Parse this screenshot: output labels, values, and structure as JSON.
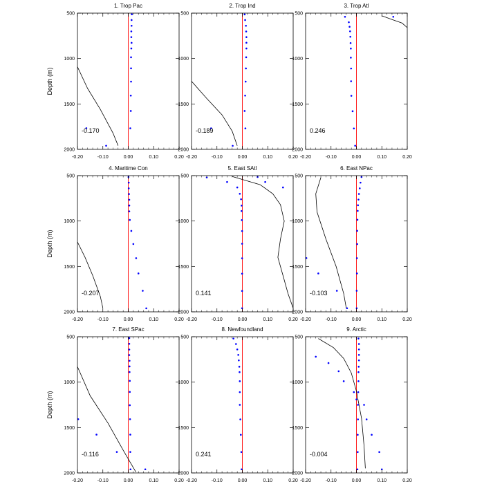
{
  "chart_data": [
    {
      "type": "scatter",
      "title": "1. Trop Pac",
      "ylabel": "Depth (m)",
      "xlim": [
        -0.2,
        0.2
      ],
      "ylim": [
        500,
        2000
      ],
      "y_inverted": true,
      "xticks": [
        "-0.20",
        "-0.10",
        "0.00",
        "0.10",
        "0.20"
      ],
      "yticks": [
        "500",
        "1000",
        "1500",
        "2000"
      ],
      "annotation": "-0.170",
      "reference_line_x": 0,
      "points": [
        [
          0.014,
          513
        ],
        [
          0.013,
          576
        ],
        [
          0.013,
          639
        ],
        [
          0.012,
          701
        ],
        [
          0.012,
          764
        ],
        [
          0.013,
          827
        ],
        [
          0.012,
          889
        ],
        [
          0.011,
          986
        ],
        [
          0.011,
          1108
        ],
        [
          0.011,
          1254
        ],
        [
          0.01,
          1408
        ],
        [
          0.01,
          1577
        ],
        [
          0.008,
          1768
        ],
        [
          -0.165,
          1767
        ],
        [
          -0.087,
          1960
        ]
      ],
      "curve": [
        [
          -0.2,
          1090
        ],
        [
          -0.16,
          1330
        ],
        [
          -0.11,
          1560
        ],
        [
          -0.06,
          1820
        ],
        [
          -0.04,
          1960
        ]
      ]
    },
    {
      "type": "scatter",
      "title": "2. Trop Ind",
      "ylabel": "",
      "xlim": [
        -0.2,
        0.2
      ],
      "ylim": [
        500,
        2000
      ],
      "y_inverted": true,
      "xticks": [
        "-0.20",
        "-0.10",
        "0.00",
        "0.10",
        "0.20"
      ],
      "yticks": [
        "500",
        "1000",
        "1500",
        "2000"
      ],
      "annotation": "-0.189",
      "reference_line_x": 0,
      "points": [
        [
          0.009,
          514
        ],
        [
          0.011,
          576
        ],
        [
          0.014,
          639
        ],
        [
          0.015,
          702
        ],
        [
          0.016,
          764
        ],
        [
          0.016,
          826
        ],
        [
          0.016,
          889
        ],
        [
          0.015,
          986
        ],
        [
          0.014,
          1109
        ],
        [
          0.013,
          1254
        ],
        [
          0.011,
          1408
        ],
        [
          0.009,
          1577
        ],
        [
          0.012,
          1769
        ],
        [
          -0.123,
          1768
        ],
        [
          -0.038,
          1961
        ]
      ],
      "curve": [
        [
          -0.2,
          1250
        ],
        [
          -0.14,
          1440
        ],
        [
          -0.08,
          1620
        ],
        [
          -0.04,
          1800
        ],
        [
          -0.02,
          1960
        ]
      ]
    },
    {
      "type": "scatter",
      "title": "3. Trop Atl",
      "ylabel": "",
      "xlim": [
        -0.2,
        0.2
      ],
      "ylim": [
        500,
        2000
      ],
      "y_inverted": true,
      "xticks": [
        "-0.20",
        "-0.10",
        "0.00",
        "0.10",
        "0.20"
      ],
      "yticks": [
        "500",
        "1000",
        "1500",
        "2000"
      ],
      "annotation": "0.246",
      "reference_line_x": 0,
      "points": [
        [
          0.145,
          540
        ],
        [
          -0.045,
          540
        ],
        [
          -0.03,
          600
        ],
        [
          -0.027,
          650
        ],
        [
          -0.025,
          700
        ],
        [
          -0.024,
          760
        ],
        [
          -0.023,
          830
        ],
        [
          -0.022,
          890
        ],
        [
          -0.022,
          990
        ],
        [
          -0.021,
          1110
        ],
        [
          -0.021,
          1250
        ],
        [
          -0.02,
          1410
        ],
        [
          -0.015,
          1580
        ],
        [
          -0.01,
          1770
        ],
        [
          -0.005,
          1960
        ]
      ],
      "curve": [
        [
          0.1,
          530
        ],
        [
          0.14,
          570
        ],
        [
          0.18,
          610
        ],
        [
          0.2,
          660
        ]
      ]
    },
    {
      "type": "scatter",
      "title": "4. Maritime Con",
      "ylabel": "Depth (m)",
      "xlim": [
        -0.2,
        0.2
      ],
      "ylim": [
        500,
        2000
      ],
      "y_inverted": true,
      "xticks": [
        "-0.20",
        "-0.10",
        "0.00",
        "0.10",
        "0.20"
      ],
      "yticks": [
        "500",
        "1000",
        "1500",
        "2000"
      ],
      "annotation": "-0.207",
      "reference_line_x": 0,
      "points": [
        [
          0.001,
          515
        ],
        [
          0.002,
          577
        ],
        [
          0.002,
          640
        ],
        [
          0.003,
          703
        ],
        [
          0.004,
          766
        ],
        [
          0.004,
          829
        ],
        [
          0.004,
          893
        ],
        [
          0.006,
          988
        ],
        [
          0.012,
          1109
        ],
        [
          0.02,
          1253
        ],
        [
          0.031,
          1409
        ],
        [
          0.04,
          1577
        ],
        [
          0.057,
          1768
        ],
        [
          0.071,
          1961
        ]
      ],
      "curve": [
        [
          -0.2,
          1230
        ],
        [
          -0.17,
          1400
        ],
        [
          -0.14,
          1600
        ],
        [
          -0.11,
          1830
        ],
        [
          -0.1,
          1960
        ]
      ]
    },
    {
      "type": "scatter",
      "title": "5. East SAtl",
      "ylabel": "",
      "xlim": [
        -0.2,
        0.2
      ],
      "ylim": [
        500,
        2000
      ],
      "y_inverted": true,
      "xticks": [
        "-0.20",
        "-0.10",
        "0.00",
        "0.10",
        "0.20"
      ],
      "yticks": [
        "500",
        "1000",
        "1500",
        "2000"
      ],
      "annotation": "0.141",
      "reference_line_x": 0,
      "points": [
        [
          -0.14,
          520
        ],
        [
          -0.06,
          570
        ],
        [
          0.06,
          515
        ],
        [
          0.09,
          570
        ],
        [
          0.16,
          630
        ],
        [
          -0.02,
          630
        ],
        [
          -0.01,
          700
        ],
        [
          -0.005,
          760
        ],
        [
          -0.003,
          830
        ],
        [
          -0.003,
          890
        ],
        [
          -0.002,
          990
        ],
        [
          -0.001,
          1110
        ],
        [
          -0.001,
          1250
        ],
        [
          -0.001,
          1410
        ],
        [
          -0.001,
          1580
        ],
        [
          -0.001,
          1770
        ],
        [
          -0.001,
          1960
        ]
      ],
      "curve": [
        [
          -0.04,
          510
        ],
        [
          0.07,
          600
        ],
        [
          0.12,
          700
        ],
        [
          0.15,
          820
        ],
        [
          0.165,
          1000
        ],
        [
          0.15,
          1200
        ],
        [
          0.14,
          1400
        ],
        [
          0.16,
          1600
        ],
        [
          0.18,
          1800
        ],
        [
          0.2,
          1960
        ]
      ]
    },
    {
      "type": "scatter",
      "title": "6. East NPac",
      "ylabel": "",
      "xlim": [
        -0.2,
        0.2
      ],
      "ylim": [
        500,
        2000
      ],
      "y_inverted": true,
      "xticks": [
        "-0.20",
        "-0.10",
        "0.00",
        "0.10",
        "0.20"
      ],
      "yticks": [
        "500",
        "1000",
        "1500",
        "2000"
      ],
      "annotation": "-0.103",
      "reference_line_x": 0,
      "points": [
        [
          0.02,
          515
        ],
        [
          0.016,
          577
        ],
        [
          0.013,
          640
        ],
        [
          0.01,
          702
        ],
        [
          0.008,
          764
        ],
        [
          0.006,
          826
        ],
        [
          0.005,
          888
        ],
        [
          0.004,
          986
        ],
        [
          0.003,
          1108
        ],
        [
          0.003,
          1254
        ],
        [
          0.002,
          1409
        ],
        [
          0.002,
          1577
        ],
        [
          0.001,
          1768
        ],
        [
          0.001,
          1960
        ],
        [
          -0.197,
          1408
        ],
        [
          -0.15,
          1577
        ],
        [
          -0.077,
          1768
        ],
        [
          -0.037,
          1960
        ]
      ],
      "curve": [
        [
          -0.14,
          520
        ],
        [
          -0.16,
          700
        ],
        [
          -0.155,
          900
        ],
        [
          -0.12,
          1200
        ],
        [
          -0.08,
          1500
        ],
        [
          -0.05,
          1800
        ],
        [
          -0.04,
          1960
        ]
      ]
    },
    {
      "type": "scatter",
      "title": "7. East SPac",
      "ylabel": "Depth (m)",
      "xlim": [
        -0.2,
        0.2
      ],
      "ylim": [
        500,
        2000
      ],
      "y_inverted": true,
      "xticks": [
        "-0.20",
        "-0.10",
        "0.00",
        "0.10",
        "0.20"
      ],
      "yticks": [
        "500",
        "1000",
        "1500",
        "2000"
      ],
      "annotation": "-0.116",
      "reference_line_x": 0,
      "points": [
        [
          0.004,
          515
        ],
        [
          0.004,
          578
        ],
        [
          0.004,
          641
        ],
        [
          0.004,
          702
        ],
        [
          0.005,
          765
        ],
        [
          0.005,
          827
        ],
        [
          0.005,
          889
        ],
        [
          0.006,
          986
        ],
        [
          0.006,
          1108
        ],
        [
          0.006,
          1254
        ],
        [
          0.007,
          1408
        ],
        [
          0.008,
          1578
        ],
        [
          0.008,
          1769
        ],
        [
          0.009,
          1960
        ],
        [
          -0.197,
          1408
        ],
        [
          -0.125,
          1578
        ],
        [
          -0.045,
          1769
        ],
        [
          0.067,
          1960
        ]
      ],
      "curve": [
        [
          -0.2,
          830
        ],
        [
          -0.15,
          1150
        ],
        [
          -0.08,
          1450
        ],
        [
          -0.02,
          1750
        ],
        [
          0.03,
          1990
        ]
      ]
    },
    {
      "type": "scatter",
      "title": "8. Newfoundland",
      "ylabel": "",
      "xlim": [
        -0.2,
        0.2
      ],
      "ylim": [
        500,
        2000
      ],
      "y_inverted": true,
      "xticks": [
        "-0.20",
        "-0.10",
        "0.00",
        "0.10",
        "0.20"
      ],
      "yticks": [
        "500",
        "1000",
        "1500",
        "2000"
      ],
      "annotation": "0.241",
      "reference_line_x": 0,
      "points": [
        [
          -0.035,
          520
        ],
        [
          -0.025,
          580
        ],
        [
          -0.02,
          640
        ],
        [
          -0.016,
          700
        ],
        [
          -0.014,
          760
        ],
        [
          -0.012,
          830
        ],
        [
          -0.011,
          890
        ],
        [
          -0.01,
          990
        ],
        [
          -0.01,
          1110
        ],
        [
          -0.01,
          1250
        ],
        [
          -0.008,
          1410
        ],
        [
          -0.006,
          1580
        ],
        [
          -0.004,
          1770
        ],
        [
          -0.003,
          1960
        ]
      ],
      "curve": []
    },
    {
      "type": "scatter",
      "title": "9. Arctic",
      "ylabel": "",
      "xlim": [
        -0.2,
        0.2
      ],
      "ylim": [
        500,
        2000
      ],
      "y_inverted": true,
      "xticks": [
        "-0.20",
        "-0.10",
        "0.00",
        "0.10",
        "0.20"
      ],
      "yticks": [
        "500",
        "1000",
        "1500",
        "2000"
      ],
      "annotation": "-0.004",
      "reference_line_x": 0,
      "points": [
        [
          0.008,
          520
        ],
        [
          0.01,
          580
        ],
        [
          0.01,
          640
        ],
        [
          0.01,
          700
        ],
        [
          0.01,
          760
        ],
        [
          0.009,
          830
        ],
        [
          0.008,
          890
        ],
        [
          0.008,
          990
        ],
        [
          0.007,
          1110
        ],
        [
          0.006,
          1250
        ],
        [
          0.006,
          1410
        ],
        [
          0.005,
          1580
        ],
        [
          0.005,
          1770
        ],
        [
          0.004,
          1960
        ],
        [
          -0.16,
          720
        ],
        [
          -0.11,
          790
        ],
        [
          -0.07,
          880
        ],
        [
          -0.05,
          990
        ],
        [
          -0.01,
          1110
        ],
        [
          0.0,
          1190
        ],
        [
          0.03,
          1250
        ],
        [
          0.04,
          1410
        ],
        [
          0.06,
          1580
        ],
        [
          0.09,
          1770
        ],
        [
          0.1,
          1960
        ]
      ],
      "curve": [
        [
          -0.15,
          520
        ],
        [
          -0.09,
          620
        ],
        [
          -0.05,
          740
        ],
        [
          -0.02,
          900
        ],
        [
          0.0,
          1100
        ],
        [
          0.02,
          1400
        ],
        [
          0.03,
          1700
        ],
        [
          0.035,
          1950
        ]
      ]
    }
  ],
  "colors": {
    "points": "#0000ff",
    "reference_line": "#ff0000",
    "curve": "#000000",
    "axes": "#000000"
  }
}
